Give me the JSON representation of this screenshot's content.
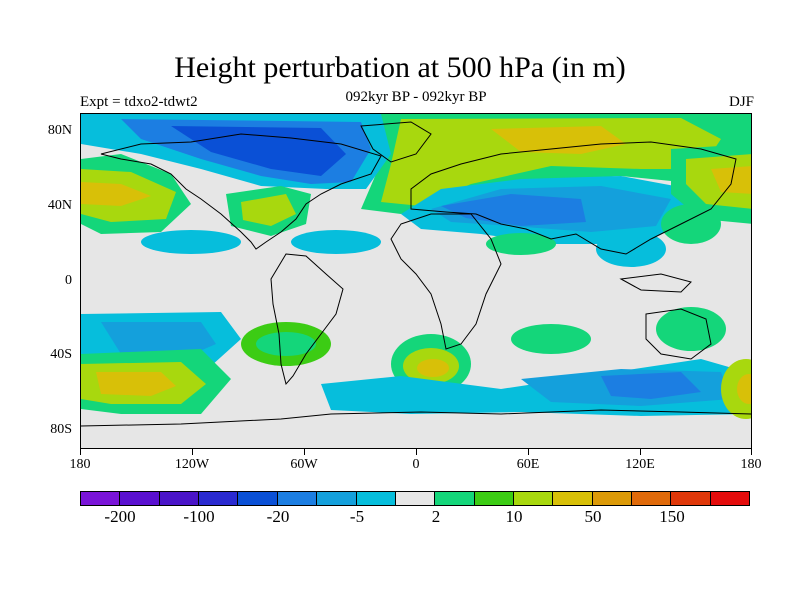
{
  "header": {
    "title": "Height perturbation at 500 hPa (in m)",
    "subtitle": "092kyr BP - 092kyr BP",
    "left_label": "Expt = tdxo2-tdwt2",
    "right_label": "DJF"
  },
  "map": {
    "lat_labels": [
      "80N",
      "40N",
      "0",
      "40S",
      "80S"
    ],
    "lon_labels": [
      "180",
      "120W",
      "60W",
      "0",
      "60E",
      "120E",
      "180"
    ],
    "background_color": "#e6e6e6"
  },
  "colorbar": {
    "colors": [
      "#7a14d8",
      "#5a10d0",
      "#4a14c8",
      "#2a2ad0",
      "#0a50d6",
      "#1c7ee2",
      "#14a0dc",
      "#06bedc",
      "#e6e6e6",
      "#14d67a",
      "#3ccc14",
      "#a8d80e",
      "#d8c008",
      "#dc9a08",
      "#e06a0a",
      "#e0380a",
      "#e40c0c"
    ],
    "labels": [
      "-200",
      "-100",
      "-20",
      "-5",
      "2",
      "10",
      "50",
      "150"
    ]
  },
  "chart_data": {
    "type": "heatmap",
    "title": "Height perturbation at 500 hPa (in m)",
    "subtitle": "092kyr BP - 092kyr BP",
    "variable": "Height perturbation at 500 hPa",
    "units": "m",
    "season": "DJF",
    "experiment": "tdxo2-tdwt2",
    "x_range": [
      "180",
      "180"
    ],
    "y_range": [
      "90S",
      "90N"
    ],
    "contour_levels": [
      -200,
      -100,
      -20,
      -5,
      2,
      10,
      50,
      150
    ],
    "regions": [
      {
        "name": "north-america-arctic-low",
        "lon": [
          -120,
          -40
        ],
        "lat": [
          50,
          80
        ],
        "level": -100
      },
      {
        "name": "north-atlantic-europe-ridge",
        "lon": [
          -20,
          100
        ],
        "lat": [
          60,
          88
        ],
        "level": 50
      },
      {
        "name": "eurasia-low",
        "lon": [
          0,
          120
        ],
        "lat": [
          25,
          55
        ],
        "level": -100
      },
      {
        "name": "north-pacific-high",
        "lon": [
          -180,
          -140
        ],
        "lat": [
          30,
          60
        ],
        "level": 50
      },
      {
        "name": "western-pacific-high",
        "lon": [
          135,
          180
        ],
        "lat": [
          40,
          70
        ],
        "level": 50
      },
      {
        "name": "southeast-us-high",
        "lon": [
          -95,
          -70
        ],
        "lat": [
          25,
          50
        ],
        "level": 50
      },
      {
        "name": "south-pacific-high",
        "lon": [
          -180,
          -130
        ],
        "lat": [
          -70,
          -40
        ],
        "level": 50
      },
      {
        "name": "southern-ocean-low",
        "lon": [
          60,
          150
        ],
        "lat": [
          -75,
          -40
        ],
        "level": -20
      },
      {
        "name": "south-atlantic-high",
        "lon": [
          -10,
          20
        ],
        "lat": [
          -60,
          -30
        ],
        "level": 50
      }
    ]
  }
}
